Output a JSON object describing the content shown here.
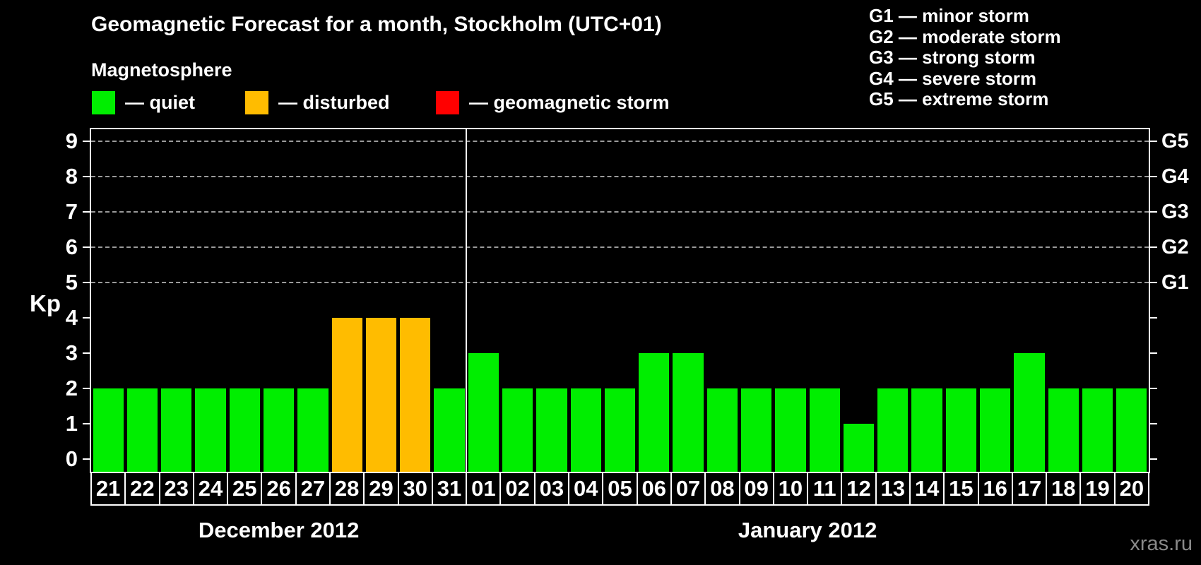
{
  "header": {
    "title": "Geomagnetic Forecast for a month, Stockholm (UTC+01)",
    "subtitle": "Magnetosphere"
  },
  "magnetosphere_legend": {
    "items": [
      {
        "status": "quiet",
        "label": "— quiet",
        "color": "#00EE00"
      },
      {
        "status": "disturbed",
        "label": "— disturbed",
        "color": "#FFBC00"
      },
      {
        "status": "storm",
        "label": "— geomagnetic storm",
        "color": "#FF0000"
      }
    ]
  },
  "g_scale_legend": {
    "lines": [
      "G1 — minor storm",
      "G2 — moderate storm",
      "G3 — strong storm",
      "G4 — severe storm",
      "G5 — extreme storm"
    ]
  },
  "watermark": "xras.ru",
  "chart_data": {
    "type": "bar",
    "title": "Geomagnetic Forecast for a month, Stockholm (UTC+01)",
    "subtitle": "Magnetosphere",
    "ylabel": "Kp",
    "ylim": [
      0,
      9
    ],
    "yticks": [
      0,
      1,
      2,
      3,
      4,
      5,
      6,
      7,
      8,
      9
    ],
    "gridlines_at_kp": [
      5,
      6,
      7,
      8,
      9
    ],
    "grid": "dashed horizontal lines at storm levels only",
    "right_axis_labels": [
      {
        "kp": 5,
        "label": "G1"
      },
      {
        "kp": 6,
        "label": "G2"
      },
      {
        "kp": 7,
        "label": "G3"
      },
      {
        "kp": 8,
        "label": "G4"
      },
      {
        "kp": 9,
        "label": "G5"
      }
    ],
    "categories": [
      "21",
      "22",
      "23",
      "24",
      "25",
      "26",
      "27",
      "28",
      "29",
      "30",
      "31",
      "01",
      "02",
      "03",
      "04",
      "05",
      "06",
      "07",
      "08",
      "09",
      "10",
      "11",
      "12",
      "13",
      "14",
      "15",
      "16",
      "17",
      "18",
      "19",
      "20"
    ],
    "series": [
      {
        "name": "Kp forecast",
        "values": [
          2,
          2,
          2,
          2,
          2,
          2,
          2,
          4,
          4,
          4,
          2,
          3,
          2,
          2,
          2,
          2,
          3,
          3,
          2,
          2,
          2,
          2,
          1,
          2,
          2,
          2,
          2,
          3,
          2,
          2,
          2
        ]
      }
    ],
    "months": [
      {
        "label": "December 2012",
        "day_count": 11
      },
      {
        "label": "January 2012",
        "day_count": 20
      }
    ],
    "status_thresholds": {
      "disturbed_min_kp": 4,
      "storm_min_kp": 5
    },
    "colors": {
      "quiet": "#00EE00",
      "disturbed": "#FFBC00",
      "storm": "#FF0000",
      "background": "#000000",
      "axis": "#FFFFFF",
      "gridline": "#9A9A9A"
    },
    "legend_position": "top-left",
    "separator_after_category_index": 10
  }
}
